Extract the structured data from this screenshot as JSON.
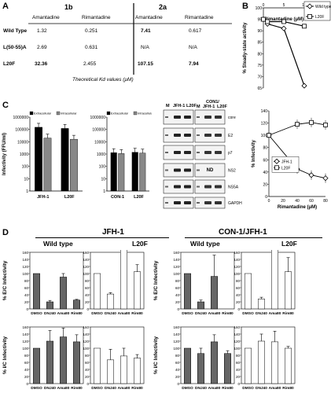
{
  "panels": {
    "A": "A",
    "B": "B",
    "C": "C",
    "D": "D"
  },
  "table": {
    "groups": [
      "1b",
      "2a"
    ],
    "drugs": [
      "Amantadine",
      "Rimantadine",
      "Amantadine",
      "Rimantadine"
    ],
    "rows": [
      {
        "label": "Wild Type",
        "v": [
          "1.32",
          "0.251",
          "7.41",
          "0.617"
        ],
        "bold": [
          false,
          false,
          true,
          false
        ]
      },
      {
        "label": "L(50-55)A",
        "v": [
          "2.69",
          "0.631",
          "N/A",
          "N/A"
        ],
        "bold": [
          false,
          false,
          false,
          false
        ]
      },
      {
        "label": "L20F",
        "v": [
          "32.36",
          "2.455",
          "107.15",
          "7.94"
        ],
        "bold": [
          true,
          false,
          true,
          true
        ]
      }
    ],
    "caption": "Theoretical Kd values (μM)"
  },
  "chart_data": [
    {
      "id": "B",
      "type": "line",
      "xlabel": "Rimantadine (μM)",
      "ylabel": "% Steady-state activity",
      "xlim": [
        0,
        10
      ],
      "ylim": [
        65,
        100
      ],
      "xticks": [
        0,
        5,
        10
      ],
      "yticks": [
        65,
        70,
        75,
        80,
        85,
        90,
        95,
        100
      ],
      "series": [
        {
          "name": "Wild type",
          "marker": "diamond",
          "x": [
            0,
            1,
            5,
            10
          ],
          "y": [
            95,
            93,
            91,
            66
          ]
        },
        {
          "name": "L20F",
          "marker": "square",
          "x": [
            0,
            1,
            5,
            10
          ],
          "y": [
            95,
            94,
            94,
            92
          ]
        }
      ]
    },
    {
      "id": "C1",
      "type": "bar",
      "ylabel": "Infectivity (FFU/ml)",
      "yscale": "log",
      "yticks": [
        "1",
        "10",
        "100",
        "1000",
        "10000",
        "100000",
        "1000000"
      ],
      "categories": [
        "JFH-1",
        "L20F"
      ],
      "series": [
        {
          "name": "Extracellular",
          "color": "#000000",
          "values": [
            150000,
            120000
          ]
        },
        {
          "name": "Intracellular",
          "color": "#888888",
          "values": [
            20000,
            16000
          ]
        }
      ]
    },
    {
      "id": "C2",
      "type": "bar",
      "yscale": "log",
      "yticks": [
        "1",
        "10",
        "100",
        "1000",
        "10000",
        "100000",
        "1000000"
      ],
      "categories": [
        "CON-1",
        "L20F"
      ],
      "series": [
        {
          "name": "Extracellular",
          "color": "#000000",
          "values": [
            1300,
            1400
          ]
        },
        {
          "name": "Intracellular",
          "color": "#888888",
          "values": [
            1100,
            1200
          ]
        }
      ]
    },
    {
      "id": "C3",
      "type": "line",
      "xlabel": "Rimantadine (μM)",
      "ylabel": "% Infectivity",
      "xlim": [
        0,
        80
      ],
      "ylim": [
        0,
        140
      ],
      "xticks": [
        0,
        20,
        40,
        60,
        80
      ],
      "yticks": [
        0,
        20,
        40,
        60,
        80,
        100,
        120,
        140
      ],
      "series": [
        {
          "name": "JFH-1",
          "marker": "diamond",
          "x": [
            0,
            40,
            60,
            80
          ],
          "y": [
            100,
            45,
            35,
            30
          ]
        },
        {
          "name": "L20F",
          "marker": "square",
          "x": [
            0,
            40,
            60,
            80
          ],
          "y": [
            100,
            118,
            121,
            117
          ]
        }
      ]
    }
  ],
  "blot": {
    "lanesLeft": [
      "M",
      "JFH-1",
      "L20F"
    ],
    "lanesRightTop": "CON1/",
    "lanesRight": [
      "M",
      "JFH-1",
      "L20F"
    ],
    "rows": [
      "core",
      "E2",
      "p7",
      "NS2",
      "NS5A",
      "GAPDH"
    ],
    "nd": "ND"
  },
  "d_panel": {
    "groupHeaders": [
      "JFH-1",
      "CON-1/JFH-1"
    ],
    "subHeaders": [
      "Wild type",
      "L20F",
      "Wild type",
      "L20F"
    ],
    "ylabelTop": "% E/C Infectivity",
    "ylabelBottom": "% I/C Infectivity",
    "categories": [
      "DMSO",
      "DNJ40",
      "Ama80",
      "Rim80"
    ],
    "yticks": [
      0,
      20,
      40,
      60,
      80,
      100,
      120,
      140,
      160
    ],
    "top": [
      [
        100,
        20,
        90,
        25
      ],
      [
        100,
        42,
        180,
        105
      ],
      [
        100,
        20,
        92,
        0
      ],
      [
        100,
        28,
        200,
        105
      ]
    ],
    "topErr": [
      [
        0,
        4,
        10,
        2
      ],
      [
        0,
        4,
        40,
        20
      ],
      [
        0,
        5,
        60,
        0
      ],
      [
        0,
        5,
        15,
        40
      ]
    ],
    "bottom": [
      [
        100,
        120,
        132,
        118
      ],
      [
        100,
        67,
        78,
        72
      ],
      [
        100,
        85,
        118,
        85
      ],
      [
        100,
        120,
        118,
        100
      ]
    ],
    "bottomErr": [
      [
        0,
        30,
        25,
        20
      ],
      [
        0,
        30,
        22,
        10
      ],
      [
        0,
        15,
        20,
        8
      ],
      [
        0,
        20,
        30,
        5
      ]
    ]
  }
}
